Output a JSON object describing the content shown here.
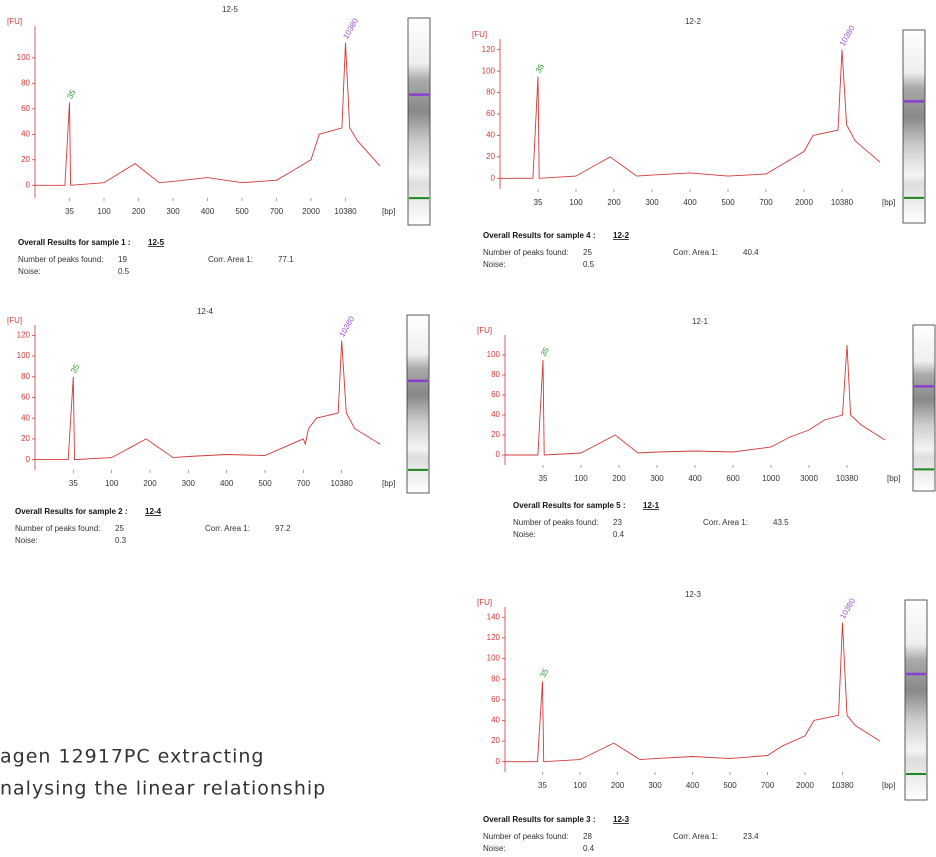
{
  "chart_data": [
    {
      "type": "line",
      "title": "12-5",
      "ylabel": "[FU]",
      "xlabel": "[bp]",
      "color": "#d23a3a",
      "x": [
        20,
        33,
        35,
        37,
        100,
        190,
        260,
        300,
        400,
        500,
        700,
        1200,
        2000,
        4000,
        9500,
        10380,
        11300,
        13000,
        18000
      ],
      "series": [
        {
          "name": "12-5",
          "color": "#d23a3a",
          "values": [
            0,
            0,
            65,
            0,
            2,
            17,
            2,
            3,
            6,
            2,
            4,
            10,
            20,
            40,
            45,
            112,
            45,
            35,
            15
          ]
        }
      ],
      "xlim": [
        20,
        18000
      ],
      "xticks": [
        35,
        100,
        200,
        300,
        400,
        500,
        700,
        2000,
        10380
      ],
      "ylim": [
        -10,
        125
      ],
      "yticks": [
        0,
        20,
        40,
        60,
        80,
        100
      ],
      "annotations": [
        {
          "text": "35",
          "x": 35,
          "y": 65,
          "color": "#2a9a2a"
        },
        {
          "text": "10380",
          "x": 10380,
          "y": 112,
          "color": "#9b4fd6"
        }
      ],
      "results": {
        "heading": "Overall Results for sample 1 :",
        "sample": "12-5",
        "peaks_label": "Number of peaks found:",
        "peaks": "19",
        "area_label": "Corr. Area 1:",
        "area": "77.1",
        "noise_label": "Noise:",
        "noise": "0.5"
      }
    },
    {
      "type": "line",
      "title": "12-2",
      "ylabel": "[FU]",
      "xlabel": "[bp]",
      "color": "#d23a3a",
      "x": [
        20,
        33,
        35,
        37,
        100,
        190,
        260,
        300,
        400,
        500,
        700,
        1200,
        2000,
        4000,
        9500,
        10380,
        11300,
        13000,
        18000
      ],
      "series": [
        {
          "name": "12-2",
          "color": "#d23a3a",
          "values": [
            0,
            0,
            95,
            0,
            2,
            20,
            2,
            3,
            5,
            2,
            4,
            12,
            25,
            40,
            45,
            120,
            50,
            35,
            15
          ]
        }
      ],
      "xlim": [
        20,
        18000
      ],
      "xticks": [
        35,
        100,
        200,
        300,
        400,
        500,
        700,
        2000,
        10380
      ],
      "ylim": [
        -10,
        130
      ],
      "yticks": [
        0,
        20,
        40,
        60,
        80,
        100,
        120
      ],
      "annotations": [
        {
          "text": "35",
          "x": 35,
          "y": 95,
          "color": "#2a9a2a"
        },
        {
          "text": "10380",
          "x": 10380,
          "y": 120,
          "color": "#9b4fd6"
        }
      ],
      "results": {
        "heading": "Overall Results for sample 4 :",
        "sample": "12-2",
        "peaks_label": "Number of peaks found:",
        "peaks": "25",
        "area_label": "Corr. Area 1:",
        "area": "40.4",
        "noise_label": "Noise:",
        "noise": "0.5"
      }
    },
    {
      "type": "line",
      "title": "12-4",
      "ylabel": "[FU]",
      "xlabel": "[bp]",
      "color": "#d23a3a",
      "x": [
        20,
        33,
        35,
        37,
        100,
        190,
        260,
        300,
        400,
        500,
        700,
        1200,
        2000,
        4000,
        9500,
        10380,
        11300,
        13000,
        18000
      ],
      "series": [
        {
          "name": "12-4",
          "color": "#d23a3a",
          "values": [
            0,
            0,
            80,
            0,
            2,
            20,
            2,
            3,
            5,
            4,
            20,
            15,
            30,
            40,
            45,
            115,
            45,
            30,
            15
          ]
        }
      ],
      "xlim": [
        20,
        18000
      ],
      "xticks": [
        35,
        100,
        200,
        300,
        400,
        500,
        700,
        10380
      ],
      "ylim": [
        -10,
        130
      ],
      "yticks": [
        0,
        20,
        40,
        60,
        80,
        100,
        120
      ],
      "annotations": [
        {
          "text": "35",
          "x": 35,
          "y": 80,
          "color": "#2a9a2a"
        },
        {
          "text": "10380",
          "x": 10380,
          "y": 115,
          "color": "#9b4fd6"
        }
      ],
      "results": {
        "heading": "Overall Results for sample 2 :",
        "sample": "12-4",
        "peaks_label": "Number of peaks found:",
        "peaks": "25",
        "area_label": "Corr. Area 1:",
        "area": "97.2",
        "noise_label": "Noise:",
        "noise": "0.3"
      }
    },
    {
      "type": "line",
      "title": "12-1",
      "ylabel": "[FU]",
      "xlabel": "[bp]",
      "color": "#d23a3a",
      "x": [
        20,
        33,
        35,
        37,
        100,
        190,
        250,
        300,
        400,
        600,
        1000,
        2000,
        3000,
        6000,
        9500,
        10380,
        11300,
        14000,
        20000
      ],
      "series": [
        {
          "name": "12-1",
          "color": "#d23a3a",
          "values": [
            0,
            0,
            95,
            0,
            2,
            20,
            2,
            3,
            4,
            3,
            8,
            18,
            25,
            35,
            40,
            110,
            40,
            30,
            15
          ]
        }
      ],
      "xlim": [
        20,
        20000
      ],
      "xticks": [
        35,
        100,
        200,
        300,
        400,
        600,
        1000,
        3000,
        10380
      ],
      "ylim": [
        -10,
        120
      ],
      "yticks": [
        0,
        20,
        40,
        60,
        80,
        100
      ],
      "annotations": [
        {
          "text": "35",
          "x": 35,
          "y": 95,
          "color": "#2a9a2a"
        }
      ],
      "results": {
        "heading": "Overall Results for sample 5 :",
        "sample": "12-1",
        "peaks_label": "Number of peaks found:",
        "peaks": "23",
        "area_label": "Corr. Area 1:",
        "area": "43.5",
        "noise_label": "Noise:",
        "noise": "0.4"
      }
    },
    {
      "type": "line",
      "title": "12-3",
      "ylabel": "[FU]",
      "xlabel": "[bp]",
      "color": "#d23a3a",
      "x": [
        20,
        33,
        35,
        37,
        100,
        190,
        260,
        300,
        400,
        500,
        700,
        1200,
        2000,
        4000,
        9500,
        10380,
        11300,
        13000,
        18000
      ],
      "series": [
        {
          "name": "12-3",
          "color": "#d23a3a",
          "values": [
            0,
            0,
            78,
            0,
            2,
            18,
            2,
            3,
            5,
            3,
            6,
            15,
            25,
            40,
            45,
            135,
            45,
            35,
            20
          ]
        }
      ],
      "xlim": [
        20,
        18000
      ],
      "xticks": [
        35,
        100,
        200,
        300,
        400,
        500,
        700,
        2000,
        10380
      ],
      "ylim": [
        -10,
        150
      ],
      "yticks": [
        0,
        20,
        40,
        60,
        80,
        100,
        120,
        140
      ],
      "annotations": [
        {
          "text": "35",
          "x": 35,
          "y": 78,
          "color": "#2a9a2a"
        },
        {
          "text": "10380",
          "x": 10380,
          "y": 135,
          "color": "#9b4fd6"
        }
      ],
      "results": {
        "heading": "Overall Results for sample 3 :",
        "sample": "12-3",
        "peaks_label": "Number of peaks found:",
        "peaks": "28",
        "area_label": "Corr. Area 1:",
        "area": "23.4",
        "noise_label": "Noise:",
        "noise": "0.4"
      }
    }
  ],
  "document": {
    "lines": [
      "agen 12917PC extracting",
      "nalysing  the linear relationship"
    ]
  }
}
